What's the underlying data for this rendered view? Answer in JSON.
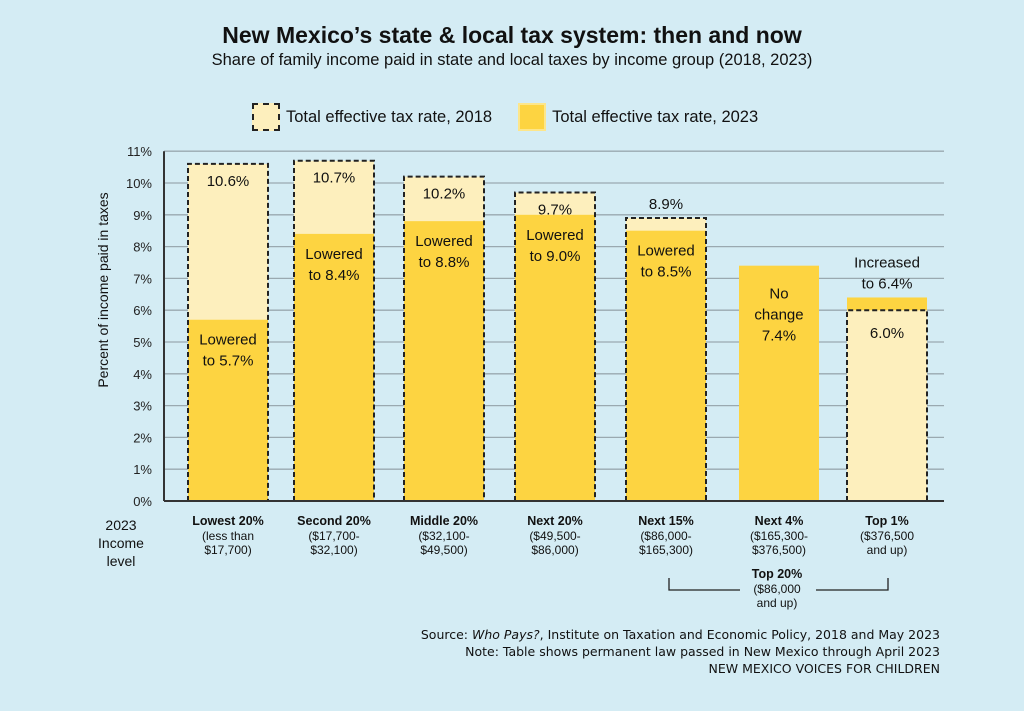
{
  "chart_data": {
    "type": "bar",
    "title": "New Mexico’s state & local tax system: then and now",
    "subtitle": "Share of family income paid in state and local taxes by income group (2018, 2023)",
    "xlabel": "2023 Income level",
    "xlabel_lines": [
      "2023",
      "Income level"
    ],
    "ylabel": "Percent of income paid in taxes",
    "ylim": [
      0,
      11
    ],
    "yticks": [
      0,
      1,
      2,
      3,
      4,
      5,
      6,
      7,
      8,
      9,
      10,
      11
    ],
    "ytick_labels": [
      "0%",
      "1%",
      "2%",
      "3%",
      "4%",
      "5%",
      "6%",
      "7%",
      "8%",
      "9%",
      "10%",
      "11%"
    ],
    "grid": true,
    "legend_position": "top-center",
    "legend": [
      {
        "name": "Total effective tax rate, 2018",
        "style": "dashed-outline",
        "color": "#fdefbd"
      },
      {
        "name": "Total effective tax rate, 2023",
        "style": "solid",
        "color": "#fdd441"
      }
    ],
    "categories": [
      {
        "name": "Lowest 20%",
        "range": [
          "(less than",
          "$17,700)"
        ]
      },
      {
        "name": "Second 20%",
        "range": [
          "($17,700-",
          "$32,100)"
        ]
      },
      {
        "name": "Middle 20%",
        "range": [
          "($32,100-",
          "$49,500)"
        ]
      },
      {
        "name": "Next 20%",
        "range": [
          "($49,500-",
          "$86,000)"
        ]
      },
      {
        "name": "Next 15%",
        "range": [
          "($86,000-",
          "$165,300)"
        ]
      },
      {
        "name": "Next 4%",
        "range": [
          "($165,300-",
          "$376,500)"
        ]
      },
      {
        "name": "Top 1%",
        "range": [
          "($376,500",
          "and up)"
        ]
      }
    ],
    "series": [
      {
        "name": "Total effective tax rate, 2018",
        "values": [
          10.6,
          10.7,
          10.2,
          9.7,
          8.9,
          7.4,
          6.0
        ]
      },
      {
        "name": "Total effective tax rate, 2023",
        "values": [
          5.7,
          8.4,
          8.8,
          9.0,
          8.5,
          7.4,
          6.4
        ]
      }
    ],
    "data_labels_2018": [
      "10.6%",
      "10.7%",
      "10.2%",
      "9.7%",
      "8.9%",
      "",
      "6.0%"
    ],
    "data_labels_2023": [
      [
        "Lowered",
        "to 5.7%"
      ],
      [
        "Lowered",
        "to 8.4%"
      ],
      [
        "Lowered",
        "to 8.8%"
      ],
      [
        "Lowered",
        "to 9.0%"
      ],
      [
        "Lowered",
        "to 8.5%"
      ],
      [
        "No",
        "change",
        "7.4%"
      ],
      [
        "Increased",
        "to 6.4%"
      ]
    ],
    "group_annotation": {
      "name": "Top 20%",
      "range": [
        "($86,000",
        "and up)"
      ],
      "spans": [
        "Next 15%",
        "Next 4%",
        "Top 1%"
      ]
    },
    "colors": {
      "bar_2018": "#fdefbd",
      "bar_2023": "#fdd441",
      "background": "#d4ecf4",
      "grid": "#9aa9b0",
      "axis": "#333333"
    }
  },
  "footer": {
    "source_prefix": "Source: ",
    "source_title": "Who Pays?",
    "source_rest": ", Institute on Taxation and Economic Policy, 2018 and May 2023",
    "note": "Note: Table shows permanent law passed in New Mexico through April 2023",
    "org": "NEW MEXICO VOICES FOR CHILDREN"
  }
}
